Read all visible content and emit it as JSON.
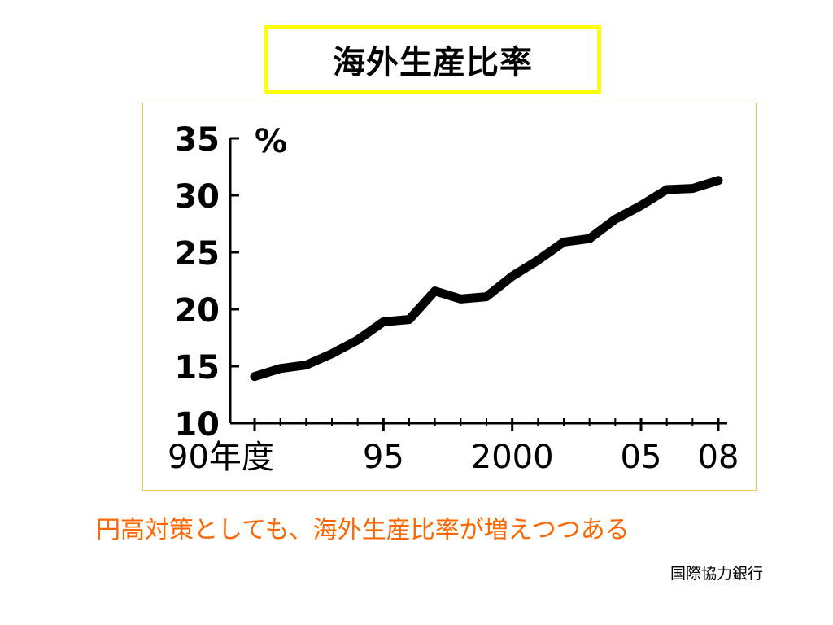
{
  "title": "海外生産比率",
  "caption": "円高対策としても、海外生産比率が増えつつある",
  "source": "国際協力銀行",
  "colors": {
    "title_border": "#ffff00",
    "caption": "#ff6600",
    "line": "#000000",
    "frame_border": "#f2c94c"
  },
  "chart_data": {
    "type": "line",
    "unit_label": "%",
    "ylim": [
      10,
      35
    ],
    "yticks": [
      "10",
      "15",
      "20",
      "25",
      "30",
      "35"
    ],
    "xlim": [
      1990,
      2008
    ],
    "xtick_labels": [
      {
        "x": 1990,
        "label": "90年度"
      },
      {
        "x": 1995,
        "label": "95"
      },
      {
        "x": 2000,
        "label": "2000"
      },
      {
        "x": 2005,
        "label": "05"
      },
      {
        "x": 2008,
        "label": "08"
      }
    ],
    "x": [
      1990,
      1991,
      1992,
      1993,
      1994,
      1995,
      1996,
      1997,
      1998,
      1999,
      2000,
      2001,
      2002,
      2003,
      2004,
      2005,
      2006,
      2007,
      2008
    ],
    "series": [
      {
        "values": [
          14.1,
          14.8,
          15.1,
          16.1,
          17.3,
          18.9,
          19.1,
          21.6,
          20.9,
          21.1,
          22.9,
          24.3,
          25.9,
          26.2,
          27.9,
          29.1,
          30.5,
          30.6,
          31.3
        ]
      }
    ],
    "grid": false,
    "legend": "none"
  }
}
